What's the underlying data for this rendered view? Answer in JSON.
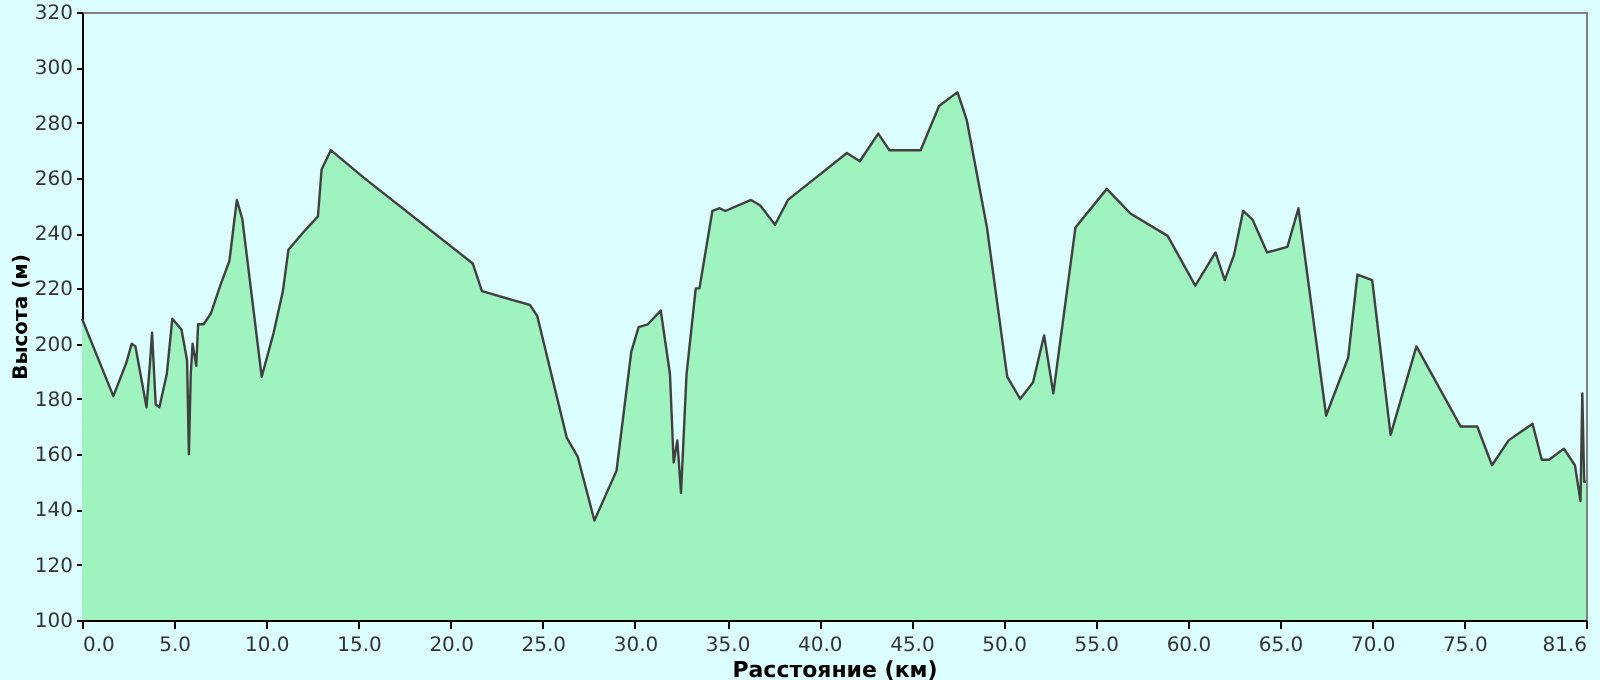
{
  "chart_data": {
    "type": "area",
    "xlabel": "Расстояние   (км)",
    "ylabel": "Высота (м)",
    "x": [
      0,
      1.7,
      2.4,
      2.7,
      2.9,
      3.5,
      3.7,
      3.8,
      4.0,
      4.2,
      4.6,
      4.9,
      5.4,
      5.7,
      5.8,
      5.9,
      6.0,
      6.2,
      6.3,
      6.6,
      7.0,
      7.5,
      8.0,
      8.4,
      8.7,
      9.75,
      10.4,
      10.9,
      11.2,
      12.1,
      12.8,
      13.0,
      13.5,
      15.3,
      21.2,
      21.7,
      24.3,
      24.7,
      26.3,
      26.9,
      27.8,
      28.4,
      29.0,
      29.8,
      30.2,
      30.7,
      31.4,
      31.9,
      32.1,
      32.3,
      32.5,
      32.8,
      33.3,
      33.5,
      34.2,
      34.6,
      34.9,
      36.3,
      36.8,
      37.6,
      38.3,
      39.8,
      41.5,
      42.2,
      43.2,
      43.8,
      45.5,
      46.5,
      47.5,
      48.0,
      49.1,
      50.2,
      50.9,
      51.6,
      52.2,
      52.7,
      53.9,
      55.6,
      56.9,
      58.9,
      60.4,
      61.5,
      62.0,
      62.5,
      63.0,
      63.5,
      64.3,
      65.4,
      66.0,
      67.5,
      68.7,
      69.2,
      70.0,
      71.0,
      72.4,
      74.8,
      75.7,
      76.5,
      77.4,
      78.7,
      79.2,
      79.6,
      80.4,
      81.0,
      81.3,
      81.4,
      81.5,
      81.6
    ],
    "series": [
      {
        "color": "#9ef3bf",
        "values": [
          209,
          181,
          193,
          200,
          199,
          177,
          194,
          204,
          178,
          177,
          189,
          209,
          205,
          194,
          160,
          189,
          200,
          192,
          207,
          207,
          211,
          221,
          230,
          252,
          245,
          188,
          204,
          219,
          234,
          241,
          246,
          263,
          270,
          260,
          229,
          219,
          214,
          210,
          166,
          159,
          136,
          145,
          154,
          197,
          206,
          207,
          212,
          189,
          157,
          165,
          146,
          189,
          220,
          220,
          248,
          249,
          248,
          252,
          250,
          243,
          252,
          260,
          269,
          266,
          276,
          270,
          270,
          286,
          291,
          281,
          242,
          188,
          180,
          186,
          203,
          182,
          242,
          256,
          247,
          239,
          221,
          233,
          223,
          232,
          248,
          245,
          233,
          235,
          249,
          174,
          195,
          225,
          223,
          167,
          199,
          170,
          170,
          156,
          165,
          171,
          158,
          158,
          162,
          156,
          143,
          182,
          150,
          150
        ]
      }
    ],
    "xlim": [
      0,
      81.6
    ],
    "xticks": [
      {
        "value": 0,
        "label": "0.0"
      },
      {
        "value": 5,
        "label": "5.0"
      },
      {
        "value": 10,
        "label": "10.0"
      },
      {
        "value": 15,
        "label": "15.0"
      },
      {
        "value": 20,
        "label": "20.0"
      },
      {
        "value": 25,
        "label": "25.0"
      },
      {
        "value": 30,
        "label": "30.0"
      },
      {
        "value": 35,
        "label": "35.0"
      },
      {
        "value": 40,
        "label": "40.0"
      },
      {
        "value": 45,
        "label": "45.0"
      },
      {
        "value": 50,
        "label": "50.0"
      },
      {
        "value": 55,
        "label": "55.0"
      },
      {
        "value": 60,
        "label": "60.0"
      },
      {
        "value": 65,
        "label": "65.0"
      },
      {
        "value": 70,
        "label": "70.0"
      },
      {
        "value": 75,
        "label": "75.0"
      },
      {
        "value": 81.6,
        "label": "81.6"
      }
    ],
    "ylim": [
      100,
      320
    ],
    "yticks": [
      100,
      120,
      140,
      160,
      180,
      200,
      220,
      240,
      260,
      280,
      300,
      320
    ],
    "grid": false
  }
}
